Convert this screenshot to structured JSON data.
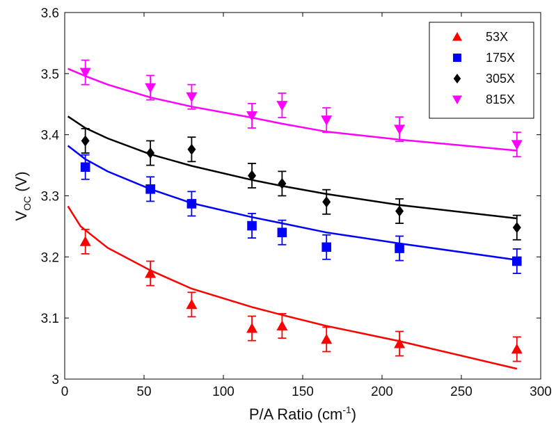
{
  "chart_data": {
    "type": "scatter",
    "xlabel": "P/A Ratio (cm",
    "xlabel_sup": "-1",
    "xlabel_end": ")",
    "ylabel": "V",
    "ylabel_sub": "OC",
    "ylabel_end": " (V)",
    "xlim": [
      0,
      300
    ],
    "ylim": [
      3.0,
      3.6
    ],
    "xticks": [
      0,
      50,
      100,
      150,
      200,
      250,
      300
    ],
    "yticks": [
      3,
      3.1,
      3.2,
      3.3,
      3.4,
      3.5,
      3.6
    ],
    "xtick_labels": [
      "0",
      "50",
      "100",
      "150",
      "200",
      "250",
      "300"
    ],
    "ytick_labels": [
      "3",
      "3.1",
      "3.2",
      "3.3",
      "3.4",
      "3.5",
      "3.6"
    ],
    "grid": false,
    "legend_position": "top-right",
    "series": [
      {
        "name": "53X",
        "color": "#ff0000",
        "marker": "triangle-up",
        "x": [
          13,
          54,
          80,
          118,
          137,
          165,
          211,
          285
        ],
        "y": [
          3.225,
          3.173,
          3.122,
          3.083,
          3.087,
          3.065,
          3.058,
          3.049
        ],
        "err": [
          0.02,
          0.02,
          0.02,
          0.02,
          0.02,
          0.02,
          0.02,
          0.02
        ],
        "fit_x": [
          2,
          10,
          27,
          54,
          80,
          118,
          137,
          165,
          211,
          285
        ],
        "fit_y": [
          3.283,
          3.25,
          3.215,
          3.178,
          3.148,
          3.118,
          3.105,
          3.087,
          3.062,
          3.017
        ]
      },
      {
        "name": "175X",
        "color": "#0000ff",
        "marker": "square",
        "x": [
          13,
          54,
          80,
          118,
          137,
          165,
          211,
          285
        ],
        "y": [
          3.347,
          3.311,
          3.287,
          3.251,
          3.24,
          3.216,
          3.214,
          3.193
        ],
        "err": [
          0.02,
          0.02,
          0.02,
          0.02,
          0.02,
          0.02,
          0.02,
          0.02
        ],
        "fit_x": [
          2,
          13,
          27,
          54,
          80,
          118,
          137,
          165,
          211,
          285
        ],
        "fit_y": [
          3.382,
          3.36,
          3.34,
          3.311,
          3.288,
          3.265,
          3.255,
          3.24,
          3.222,
          3.195
        ]
      },
      {
        "name": "305X",
        "color": "#000000",
        "marker": "diamond",
        "x": [
          13,
          54,
          80,
          118,
          137,
          165,
          211,
          285
        ],
        "y": [
          3.39,
          3.37,
          3.376,
          3.333,
          3.32,
          3.29,
          3.275,
          3.248
        ],
        "err": [
          0.02,
          0.02,
          0.02,
          0.02,
          0.02,
          0.02,
          0.02,
          0.02
        ],
        "fit_x": [
          2,
          13,
          27,
          54,
          80,
          118,
          137,
          165,
          211,
          285
        ],
        "fit_y": [
          3.43,
          3.411,
          3.394,
          3.368,
          3.349,
          3.326,
          3.316,
          3.303,
          3.285,
          3.263
        ]
      },
      {
        "name": "815X",
        "color": "#ff00ff",
        "marker": "triangle-down",
        "x": [
          13,
          54,
          80,
          118,
          137,
          165,
          211,
          285
        ],
        "y": [
          3.502,
          3.477,
          3.462,
          3.431,
          3.448,
          3.424,
          3.409,
          3.384
        ],
        "err": [
          0.02,
          0.02,
          0.02,
          0.02,
          0.02,
          0.02,
          0.02,
          0.02
        ],
        "fit_x": [
          2,
          13,
          27,
          54,
          80,
          118,
          137,
          165,
          211,
          285
        ],
        "fit_y": [
          3.508,
          3.496,
          3.482,
          3.461,
          3.446,
          3.428,
          3.418,
          3.405,
          3.392,
          3.374
        ]
      }
    ]
  }
}
